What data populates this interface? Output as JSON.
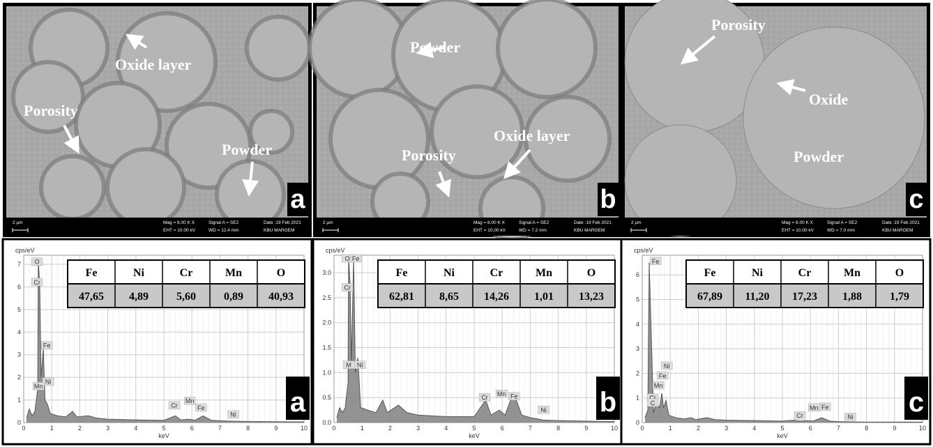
{
  "panels": [
    {
      "sem": {
        "annotations": [
          "Oxide layer",
          "Porosity",
          "Powder"
        ],
        "letter": "a",
        "scale": "2 µm",
        "info": [
          "Mag =  8.00 K X",
          "Signal A = SE2",
          "Date :19 Feb 2021",
          "EHT = 10.00 kV",
          "WD = 12.4 mm",
          "KBU MARGEM"
        ]
      }
    },
    {
      "sem": {
        "annotations": [
          "Powder",
          "Oxide layer",
          "Porosity"
        ],
        "letter": "b",
        "scale": "2 µm",
        "info": [
          "Mag =  8.00 K X",
          "Signal A = SE2",
          "Date :19 Feb 2021",
          "EHT = 10.00 kV",
          "WD = 7.2 mm",
          "KBU MARGEM"
        ]
      }
    },
    {
      "sem": {
        "annotations": [
          "Porosity",
          "Oxide",
          "Powder"
        ],
        "letter": "c",
        "scale": "2 µm",
        "info": [
          "Mag =  8.00 K X",
          "Signal A = SE2",
          "Date :19 Feb 2021",
          "EHT = 10.00 kV",
          "WD = 7.0 mm",
          "KBU MARGEM"
        ]
      }
    }
  ],
  "chart_data": [
    {
      "type": "line",
      "y_label": "cps/eV",
      "x_label": "keV",
      "letter": "a",
      "color": "#808080",
      "table": {
        "headers": [
          "Fe",
          "Ni",
          "Cr",
          "Mn",
          "O"
        ],
        "values": [
          "47,65",
          "4,89",
          "5,60",
          "0,89",
          "40,93"
        ]
      },
      "peak_labels": [
        "O",
        "Cr",
        "Fe",
        "Ni",
        "Mn",
        "Cr",
        "Mn",
        "Fe",
        "Ni"
      ],
      "xlim": [
        0,
        10
      ],
      "xticks": [
        0,
        1,
        2,
        3,
        4,
        5,
        6,
        7,
        8,
        9,
        10
      ],
      "ylim": [
        0,
        7.4
      ],
      "yticks": [
        0,
        1,
        2,
        3,
        4,
        5,
        6,
        7
      ],
      "x": [
        0.1,
        0.2,
        0.3,
        0.4,
        0.5,
        0.52,
        0.57,
        0.62,
        0.7,
        0.76,
        0.85,
        0.95,
        1.2,
        1.5,
        1.74,
        1.9,
        2.3,
        2.6,
        3,
        4,
        5,
        5.41,
        5.6,
        5.9,
        6.1,
        6.4,
        6.7,
        7,
        7.47,
        8,
        9,
        10
      ],
      "values": [
        0.2,
        0.6,
        0.3,
        0.5,
        1.5,
        7.2,
        6.1,
        2.0,
        3.3,
        1.0,
        0.8,
        0.4,
        0.3,
        0.25,
        0.5,
        0.25,
        0.3,
        0.2,
        0.15,
        0.12,
        0.1,
        0.3,
        0.12,
        0.15,
        0.1,
        0.3,
        0.1,
        0.08,
        0.06,
        0.05,
        0.04,
        0.03
      ]
    },
    {
      "type": "line",
      "y_label": "cps/eV",
      "x_label": "keV",
      "letter": "b",
      "color": "#808080",
      "table": {
        "headers": [
          "Fe",
          "Ni",
          "Cr",
          "Mn",
          "O"
        ],
        "values": [
          "62,81",
          "8,65",
          "14,26",
          "1,01",
          "13,23"
        ]
      },
      "peak_labels": [
        "O",
        "Fe",
        "Cr",
        "M",
        "Ni",
        "Cr",
        "Mn",
        "Fe",
        "Ni"
      ],
      "xlim": [
        0,
        10
      ],
      "xticks": [
        0,
        1,
        2,
        3,
        4,
        5,
        6,
        7,
        8,
        9,
        10
      ],
      "ylim": [
        0,
        3.35
      ],
      "yticks": [
        {
          "value": 0,
          "label": "0.0"
        },
        0.5,
        {
          "value": 1,
          "label": "1.0"
        },
        1.5,
        {
          "value": 2,
          "label": "2.0"
        },
        2.5,
        {
          "value": 3,
          "label": "3.0"
        }
      ],
      "x": [
        0.1,
        0.2,
        0.3,
        0.4,
        0.5,
        0.52,
        0.57,
        0.62,
        0.7,
        0.76,
        0.85,
        0.95,
        1.2,
        1.5,
        1.74,
        1.9,
        2.3,
        2.6,
        3,
        4,
        5,
        5.41,
        5.6,
        5.9,
        6.1,
        6.4,
        6.7,
        7,
        7.47,
        8,
        9,
        10
      ],
      "values": [
        0.1,
        0.3,
        0.2,
        0.3,
        0.8,
        3.3,
        2.8,
        1.2,
        3.3,
        1.0,
        1.3,
        0.3,
        0.25,
        0.2,
        0.45,
        0.2,
        0.35,
        0.2,
        0.15,
        0.12,
        0.12,
        0.45,
        0.15,
        0.25,
        0.15,
        0.6,
        0.15,
        0.1,
        0.05,
        0.04,
        0.03,
        0.02
      ]
    },
    {
      "type": "line",
      "y_label": "cps/eV",
      "x_label": "keV",
      "letter": "c",
      "color": "#808080",
      "table": {
        "headers": [
          "Fe",
          "Ni",
          "Cr",
          "Mn",
          "O"
        ],
        "values": [
          "67,89",
          "11,20",
          "17,23",
          "1,88",
          "1,79"
        ]
      },
      "peak_labels": [
        "Fe",
        "Ni",
        "Fe",
        "Mn",
        "Cr",
        "C",
        "Cr",
        "Mn",
        "Fe",
        "Ni"
      ],
      "xlim": [
        0,
        10
      ],
      "xticks": [
        0,
        1,
        2,
        3,
        4,
        5,
        6,
        7,
        8,
        9,
        10
      ],
      "ylim": [
        0,
        6.8
      ],
      "yticks": [
        0,
        1,
        2,
        3,
        4,
        5,
        6
      ],
      "x": [
        0.1,
        0.2,
        0.25,
        0.4,
        0.5,
        0.52,
        0.57,
        0.62,
        0.7,
        0.76,
        0.85,
        0.95,
        1.2,
        1.5,
        1.74,
        1.9,
        2.3,
        2.6,
        3,
        4,
        5,
        5.41,
        5.6,
        5.9,
        6.1,
        6.4,
        6.7,
        7,
        7.47,
        8,
        9,
        10
      ],
      "values": [
        0.2,
        0.5,
        6.5,
        0.4,
        0.8,
        1.0,
        0.7,
        0.6,
        1.2,
        0.6,
        0.9,
        0.3,
        0.2,
        0.15,
        0.2,
        0.12,
        0.2,
        0.12,
        0.1,
        0.08,
        0.06,
        0.1,
        0.06,
        0.08,
        0.06,
        0.2,
        0.06,
        0.04,
        0.03,
        0.02,
        0.02,
        0.02
      ]
    }
  ]
}
